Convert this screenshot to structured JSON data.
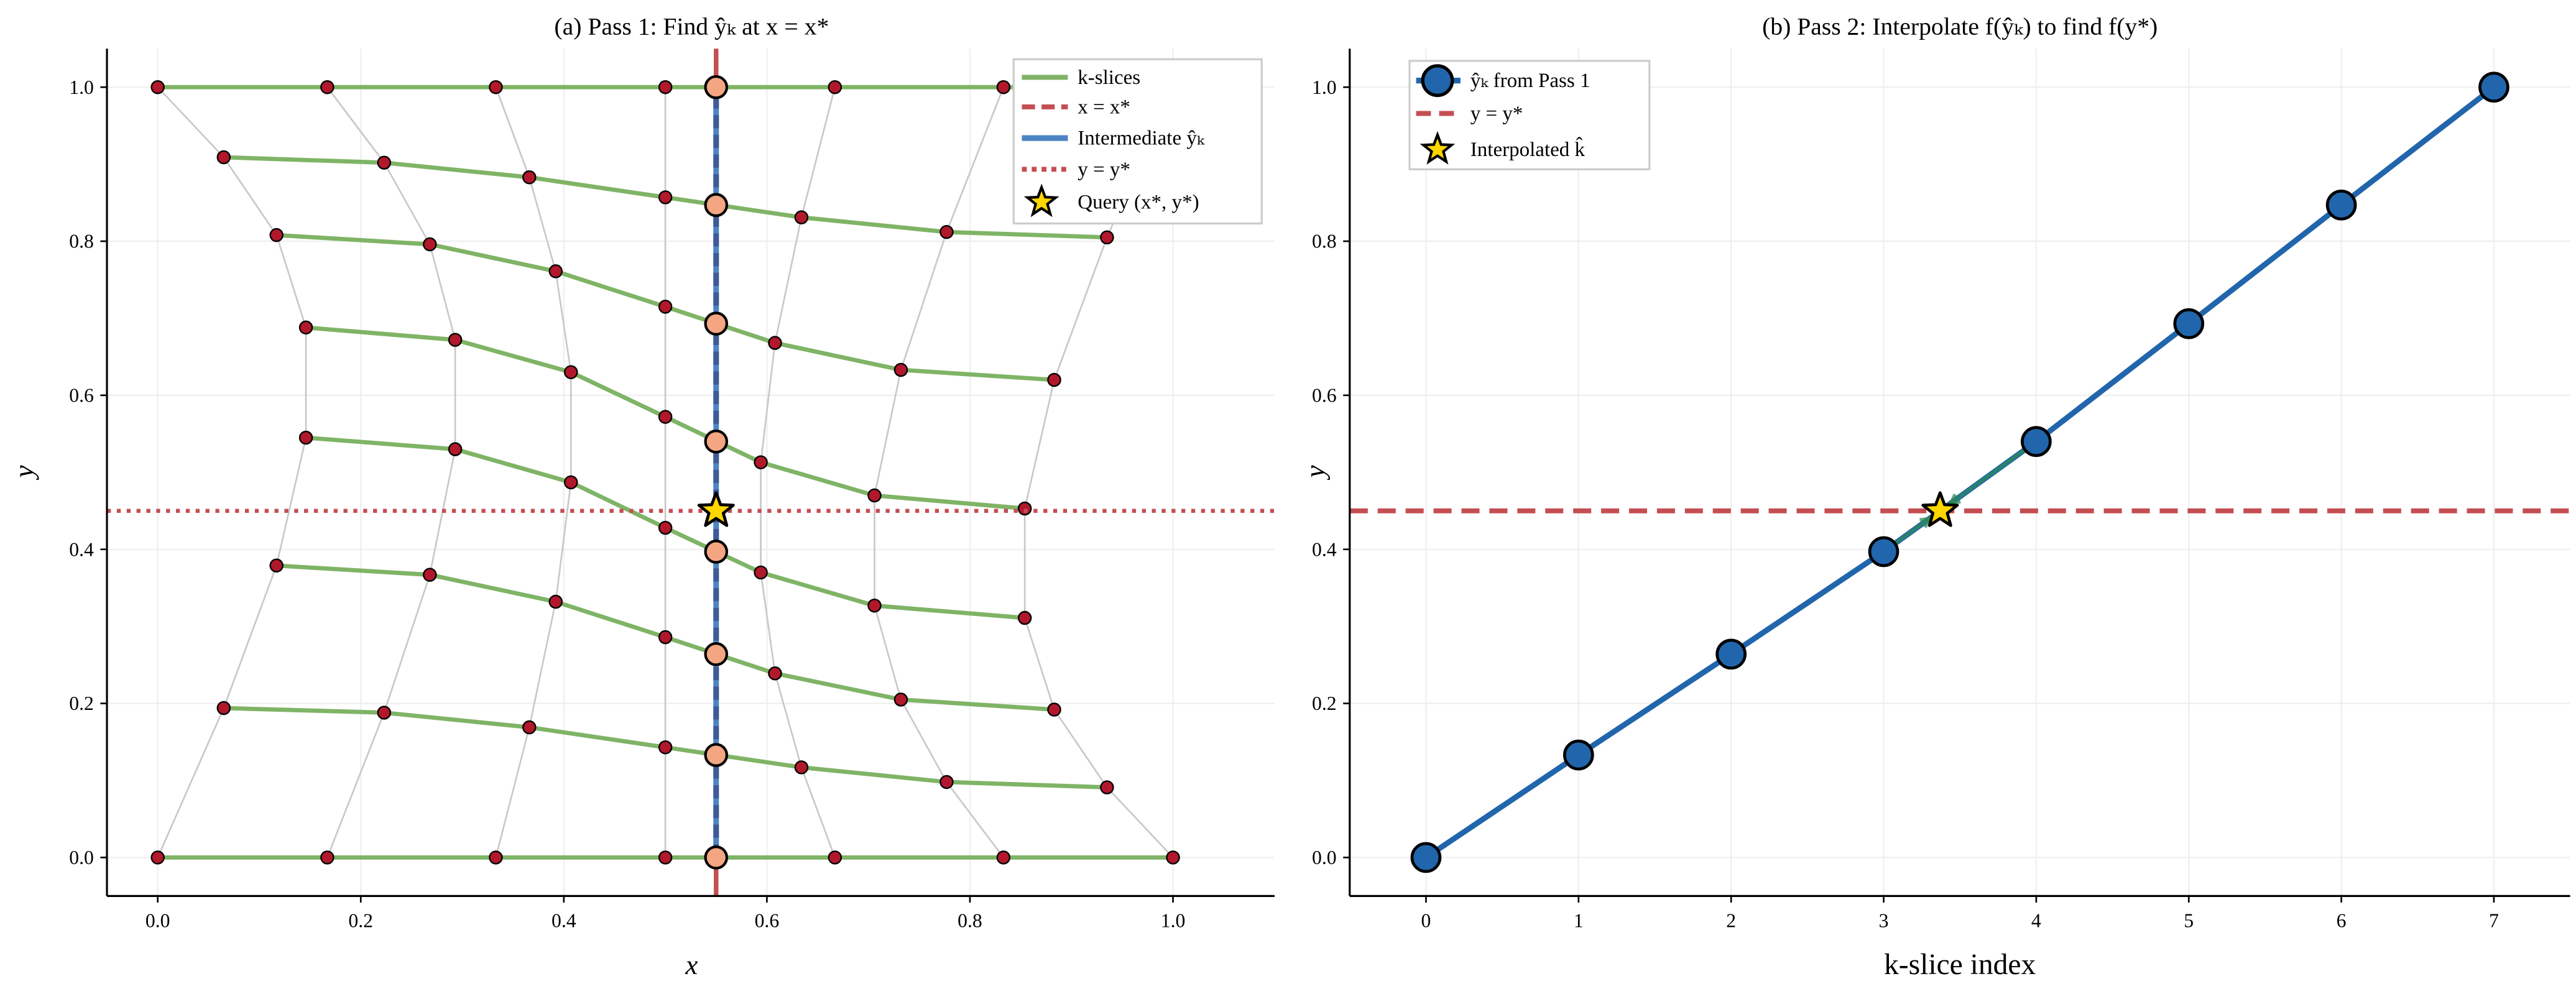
{
  "chart_data": [
    {
      "type": "line",
      "title": "(a) Pass 1: Find ŷₖ at x = x*",
      "xlabel": "x",
      "ylabel": "y",
      "xlim": [
        -0.05,
        1.1
      ],
      "ylim": [
        -0.05,
        1.05
      ],
      "xticks": [
        "0.0",
        "0.2",
        "0.4",
        "0.6",
        "0.8",
        "1.0"
      ],
      "yticks": [
        "0.0",
        "0.2",
        "0.4",
        "0.6",
        "0.8",
        "1.0"
      ],
      "grid": true,
      "legend_position": "top-right",
      "legend": [
        "k-slices",
        "x = x*",
        "Intermediate ŷₖ",
        "y = y*",
        "Query (x*, y*)"
      ],
      "k_slices": [
        {
          "x": [
            0,
            0.167,
            0.333,
            0.5,
            0.667,
            0.833,
            1.0
          ],
          "y": [
            0,
            0,
            0,
            0,
            0,
            0,
            0
          ]
        },
        {
          "x": [
            0.065,
            0.223,
            0.366,
            0.5,
            0.634,
            0.777,
            0.935
          ],
          "y": [
            0.194,
            0.188,
            0.169,
            0.143,
            0.117,
            0.098,
            0.091
          ]
        },
        {
          "x": [
            0.117,
            0.268,
            0.392,
            0.5,
            0.608,
            0.732,
            0.883
          ],
          "y": [
            0.379,
            0.367,
            0.332,
            0.286,
            0.239,
            0.205,
            0.192
          ]
        },
        {
          "x": [
            0.146,
            0.293,
            0.407,
            0.5,
            0.594,
            0.706,
            0.854
          ],
          "y": [
            0.545,
            0.53,
            0.487,
            0.428,
            0.37,
            0.327,
            0.311
          ]
        },
        {
          "x": [
            0.146,
            0.293,
            0.407,
            0.5,
            0.594,
            0.706,
            0.854
          ],
          "y": [
            0.688,
            0.672,
            0.63,
            0.572,
            0.513,
            0.47,
            0.453
          ]
        },
        {
          "x": [
            0.117,
            0.268,
            0.392,
            0.5,
            0.608,
            0.732,
            0.883
          ],
          "y": [
            0.808,
            0.796,
            0.761,
            0.715,
            0.668,
            0.633,
            0.62
          ]
        },
        {
          "x": [
            0.065,
            0.223,
            0.366,
            0.5,
            0.634,
            0.777,
            0.935
          ],
          "y": [
            0.909,
            0.902,
            0.883,
            0.857,
            0.831,
            0.812,
            0.805
          ]
        },
        {
          "x": [
            0,
            0.167,
            0.333,
            0.5,
            0.667,
            0.833,
            1.0
          ],
          "y": [
            1,
            1,
            1,
            1,
            1,
            1,
            1
          ]
        }
      ],
      "x_star": 0.55,
      "y_star": 0.45,
      "y_hat": [
        0,
        0.133,
        0.264,
        0.397,
        0.54,
        0.693,
        0.847,
        1.0
      ],
      "colors": {
        "slices": "#7fb466",
        "grid_points": "#b2182b",
        "y_hat": "#f4a582",
        "x_line": "#c44e52",
        "intermediate": "#4c84c4",
        "star": "#ffd700",
        "connectors": "#c8c8c8"
      }
    },
    {
      "type": "line",
      "title": "(b) Pass 2: Interpolate f(ŷₖ) to find f(y*)",
      "xlabel": "k-slice index",
      "ylabel": "y",
      "xlim": [
        -0.5,
        7.5
      ],
      "ylim": [
        -0.05,
        1.05
      ],
      "xticks": [
        "0",
        "1",
        "2",
        "3",
        "4",
        "5",
        "6",
        "7"
      ],
      "yticks": [
        "0.0",
        "0.2",
        "0.4",
        "0.6",
        "0.8",
        "1.0"
      ],
      "grid": true,
      "legend_position": "top-left",
      "legend": [
        "ŷₖ from Pass 1",
        "y = y*",
        "Interpolated k̂"
      ],
      "x": [
        0,
        1,
        2,
        3,
        4,
        5,
        6,
        7
      ],
      "y": [
        0,
        0.133,
        0.264,
        0.397,
        0.54,
        0.693,
        0.847,
        1.0
      ],
      "y_star": 0.45,
      "k_hat": 3.37,
      "colors": {
        "series": "#2166ac",
        "y_line": "#c44e52",
        "star": "#ffd700",
        "arrows": "#2e8b57"
      }
    }
  ]
}
